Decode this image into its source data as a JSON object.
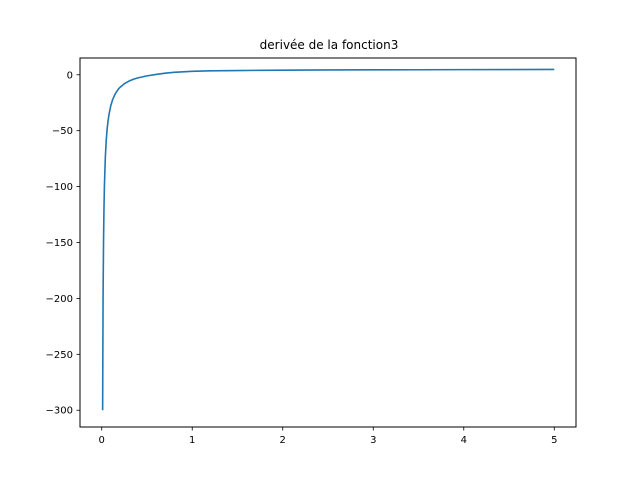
{
  "chart_data": {
    "type": "line",
    "title": "derivée de la fonction3",
    "xlabel": "",
    "ylabel": "",
    "xlim": [
      -0.24,
      5.24
    ],
    "ylim": [
      -315,
      15
    ],
    "x_ticks": [
      0,
      1,
      2,
      3,
      4,
      5
    ],
    "x_tick_labels": [
      "0",
      "1",
      "2",
      "3",
      "4",
      "5"
    ],
    "y_ticks": [
      0,
      -50,
      -100,
      -150,
      -200,
      -250,
      -300
    ],
    "y_tick_labels": [
      "0",
      "−50",
      "−100",
      "−150",
      "−200",
      "−250",
      "−300"
    ],
    "grid": false,
    "legend": false,
    "series": [
      {
        "color": "#1f77b4",
        "x": [
          0.01,
          0.015,
          0.02,
          0.025,
          0.03,
          0.04,
          0.05,
          0.06,
          0.07,
          0.08,
          0.1,
          0.12,
          0.15,
          0.18,
          0.2,
          0.25,
          0.3,
          0.35,
          0.4,
          0.5,
          0.6,
          0.7,
          0.8,
          1.0,
          1.2,
          1.5,
          1.8,
          2.0,
          2.5,
          3.0,
          3.5,
          4.0,
          4.5,
          5.0
        ],
        "y": [
          -300.0,
          -199.4,
          -149.1,
          -118.6,
          -98.6,
          -73.6,
          -58.5,
          -48.4,
          -41.2,
          -35.7,
          -27.7,
          -22.3,
          -16.9,
          -13.2,
          -11.4,
          -8.0,
          -5.7,
          -4.0,
          -2.8,
          -1.0,
          0.3,
          1.4,
          2.2,
          3.1,
          3.5,
          3.8,
          4.0,
          4.1,
          4.3,
          4.4,
          4.5,
          4.6,
          4.7,
          4.8
        ]
      }
    ]
  }
}
